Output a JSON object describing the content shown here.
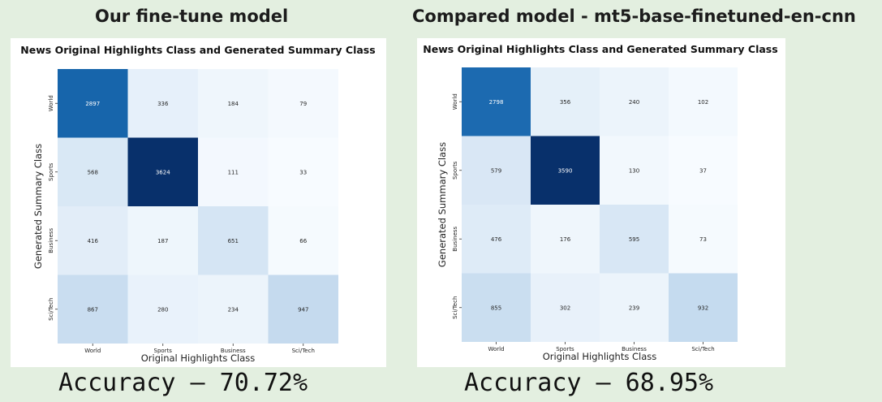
{
  "panels": [
    {
      "heading": "Our fine-tune model",
      "accuracy_label": "Accuracy – 70.72%"
    },
    {
      "heading": "Compared model - mt5-base-finetuned-en-cnn",
      "accuracy_label": "Accuracy – 68.95%"
    }
  ],
  "chart_data": [
    {
      "type": "heatmap",
      "title": "News Original Highlights Class and Generated Summary Class",
      "xlabel": "Original Highlights Class",
      "ylabel": "Generated Summary Class",
      "x_categories": [
        "World",
        "Sports",
        "Business",
        "Sci/Tech"
      ],
      "y_categories": [
        "World",
        "Sports",
        "Business",
        "Sci/Tech"
      ],
      "values": [
        [
          2897,
          336,
          184,
          79
        ],
        [
          568,
          3624,
          111,
          33
        ],
        [
          416,
          187,
          651,
          66
        ],
        [
          867,
          280,
          234,
          947
        ]
      ],
      "colormap": "Blues",
      "vmin": 33,
      "vmax": 3624,
      "colorbar": false,
      "grid": false
    },
    {
      "type": "heatmap",
      "title": "News Original Highlights Class and Generated Summary Class",
      "xlabel": "Original Highlights Class",
      "ylabel": "Generated Summary Class",
      "x_categories": [
        "World",
        "Sports",
        "Business",
        "Sci/Tech"
      ],
      "y_categories": [
        "World",
        "Sports",
        "Business",
        "Sci/Tech"
      ],
      "values": [
        [
          2798,
          356,
          240,
          102
        ],
        [
          579,
          3590,
          130,
          37
        ],
        [
          476,
          176,
          595,
          73
        ],
        [
          855,
          302,
          239,
          932
        ]
      ],
      "colormap": "Blues",
      "vmin": 37,
      "vmax": 3590,
      "colorbar": false,
      "grid": false
    }
  ]
}
